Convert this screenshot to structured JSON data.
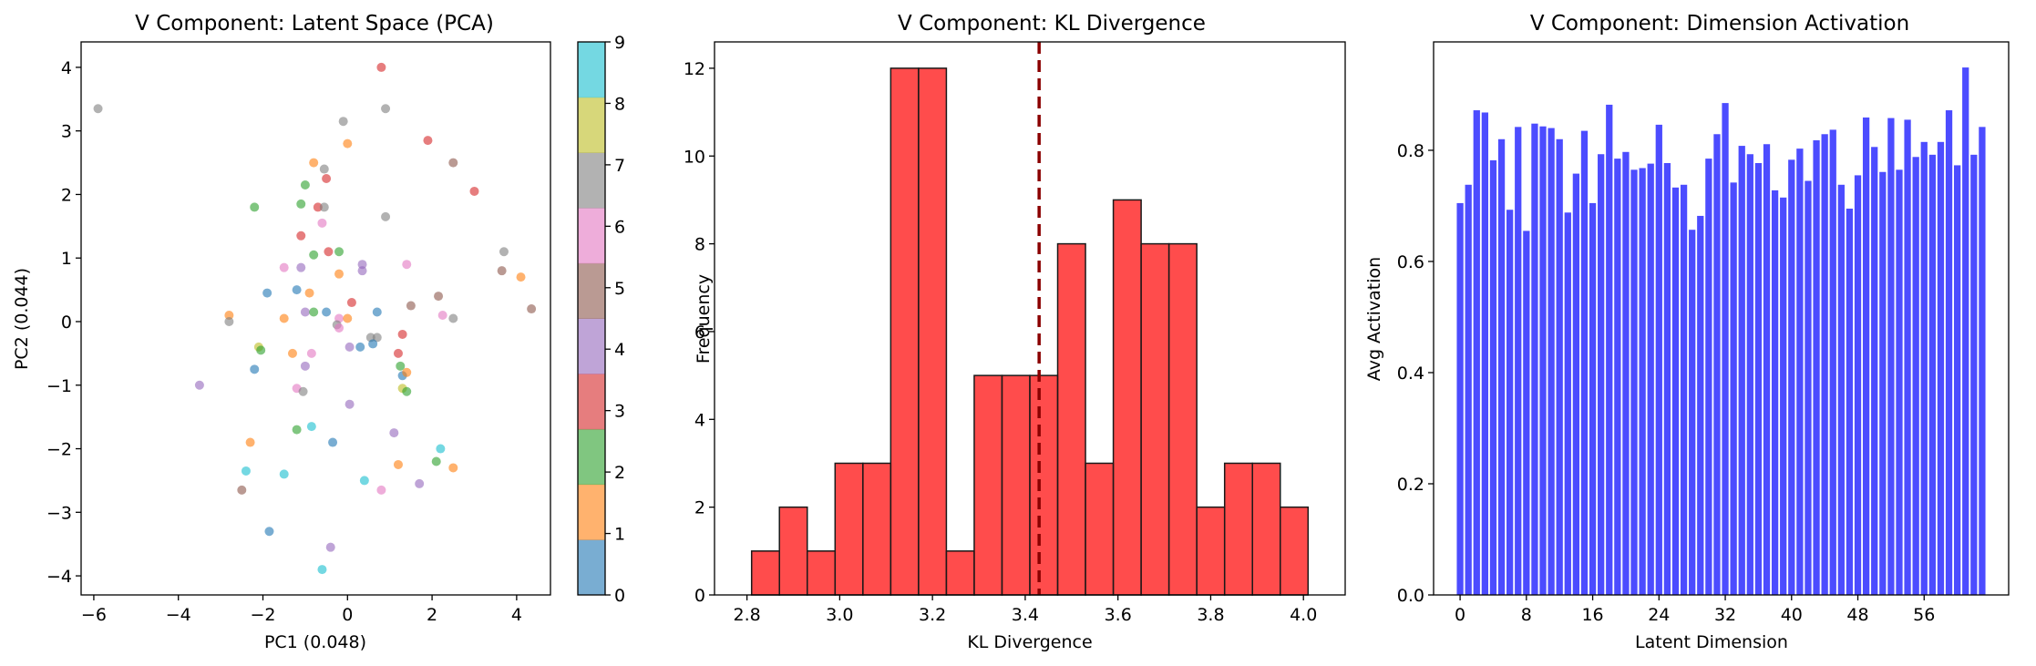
{
  "chart_data": [
    {
      "type": "scatter",
      "title": "V Component: Latent Space (PCA)",
      "xlabel": "PC1 (0.048)",
      "ylabel": "PC2 (0.044)",
      "xlim": [
        -6.3,
        4.8
      ],
      "ylim": [
        -4.3,
        4.4
      ],
      "xticks": [
        -6,
        -4,
        -2,
        0,
        2,
        4
      ],
      "yticks": [
        -4,
        -3,
        -2,
        -1,
        0,
        1,
        2,
        3,
        4
      ],
      "colorbar": {
        "ticks": [
          0,
          1,
          2,
          3,
          4,
          5,
          6,
          7,
          8,
          9
        ]
      },
      "class_colors": [
        "#1f77b4",
        "#ff7f0e",
        "#2ca02c",
        "#d62728",
        "#9467bd",
        "#8c564b",
        "#e377c2",
        "#7f7f7f",
        "#bcbd22",
        "#17becf"
      ],
      "points": [
        [
          -5.9,
          3.35,
          7
        ],
        [
          0.8,
          4.0,
          3
        ],
        [
          -0.1,
          3.15,
          7
        ],
        [
          0.9,
          3.35,
          7
        ],
        [
          0.0,
          2.8,
          1
        ],
        [
          1.9,
          2.85,
          3
        ],
        [
          -0.8,
          2.5,
          1
        ],
        [
          -0.55,
          2.4,
          7
        ],
        [
          2.5,
          2.5,
          5
        ],
        [
          -0.5,
          2.25,
          3
        ],
        [
          -1.0,
          2.15,
          2
        ],
        [
          3.0,
          2.05,
          3
        ],
        [
          -2.2,
          1.8,
          2
        ],
        [
          -1.1,
          1.85,
          2
        ],
        [
          -0.7,
          1.8,
          3
        ],
        [
          -0.55,
          1.8,
          7
        ],
        [
          0.9,
          1.65,
          7
        ],
        [
          -0.6,
          1.55,
          6
        ],
        [
          -1.1,
          1.35,
          3
        ],
        [
          -0.2,
          1.1,
          2
        ],
        [
          -0.8,
          1.05,
          2
        ],
        [
          -0.45,
          1.1,
          3
        ],
        [
          3.7,
          1.1,
          7
        ],
        [
          1.4,
          0.9,
          6
        ],
        [
          0.35,
          0.9,
          4
        ],
        [
          0.35,
          0.8,
          4
        ],
        [
          -1.5,
          0.85,
          6
        ],
        [
          -1.1,
          0.85,
          4
        ],
        [
          -0.2,
          0.75,
          1
        ],
        [
          3.65,
          0.8,
          5
        ],
        [
          4.1,
          0.7,
          1
        ],
        [
          -1.2,
          0.5,
          0
        ],
        [
          -1.9,
          0.45,
          0
        ],
        [
          -0.9,
          0.45,
          1
        ],
        [
          2.15,
          0.4,
          5
        ],
        [
          0.1,
          0.3,
          3
        ],
        [
          4.35,
          0.2,
          5
        ],
        [
          -1.0,
          0.15,
          4
        ],
        [
          -0.8,
          0.15,
          2
        ],
        [
          -0.5,
          0.15,
          0
        ],
        [
          1.5,
          0.25,
          5
        ],
        [
          2.25,
          0.1,
          6
        ],
        [
          0.7,
          0.15,
          0
        ],
        [
          -2.8,
          0.1,
          1
        ],
        [
          -1.5,
          0.05,
          1
        ],
        [
          -0.2,
          0.05,
          6
        ],
        [
          0.0,
          0.05,
          1
        ],
        [
          -0.25,
          -0.05,
          7
        ],
        [
          2.5,
          0.05,
          7
        ],
        [
          -2.8,
          0.0,
          7
        ],
        [
          -0.2,
          -0.1,
          6
        ],
        [
          1.3,
          -0.2,
          3
        ],
        [
          0.55,
          -0.25,
          7
        ],
        [
          0.7,
          -0.25,
          7
        ],
        [
          0.6,
          -0.35,
          0
        ],
        [
          -2.1,
          -0.4,
          8
        ],
        [
          -2.05,
          -0.45,
          2
        ],
        [
          0.3,
          -0.4,
          0
        ],
        [
          0.05,
          -0.4,
          4
        ],
        [
          -1.3,
          -0.5,
          1
        ],
        [
          -0.85,
          -0.5,
          6
        ],
        [
          1.2,
          -0.5,
          3
        ],
        [
          -2.2,
          -0.75,
          0
        ],
        [
          -1.0,
          -0.7,
          4
        ],
        [
          1.25,
          -0.7,
          2
        ],
        [
          1.3,
          -0.85,
          0
        ],
        [
          1.4,
          -0.8,
          1
        ],
        [
          -1.2,
          -1.05,
          6
        ],
        [
          -1.05,
          -1.1,
          7
        ],
        [
          1.3,
          -1.05,
          8
        ],
        [
          1.4,
          -1.1,
          2
        ],
        [
          -3.5,
          -1.0,
          4
        ],
        [
          0.05,
          -1.3,
          4
        ],
        [
          -1.2,
          -1.7,
          2
        ],
        [
          -0.85,
          -1.65,
          9
        ],
        [
          1.1,
          -1.75,
          4
        ],
        [
          -0.35,
          -1.9,
          0
        ],
        [
          2.2,
          -2.0,
          9
        ],
        [
          2.1,
          -2.2,
          2
        ],
        [
          -2.3,
          -1.9,
          1
        ],
        [
          1.2,
          -2.25,
          1
        ],
        [
          2.5,
          -2.3,
          1
        ],
        [
          -2.4,
          -2.35,
          9
        ],
        [
          -1.5,
          -2.4,
          9
        ],
        [
          0.4,
          -2.5,
          9
        ],
        [
          1.7,
          -2.55,
          4
        ],
        [
          -2.5,
          -2.65,
          5
        ],
        [
          0.8,
          -2.65,
          6
        ],
        [
          -1.85,
          -3.3,
          0
        ],
        [
          -0.4,
          -3.55,
          4
        ],
        [
          -0.6,
          -3.9,
          9
        ]
      ]
    },
    {
      "type": "bar",
      "title": "V Component: KL Divergence",
      "xlabel": "KL Divergence",
      "ylabel": "Frequency",
      "xlim": [
        2.73,
        4.09
      ],
      "ylim": [
        0,
        12.6
      ],
      "xticks": [
        2.8,
        3.0,
        3.2,
        3.4,
        3.6,
        3.8,
        4.0
      ],
      "yticks": [
        0,
        2,
        4,
        6,
        8,
        10,
        12
      ],
      "bin_edges": [
        2.81,
        2.87,
        2.93,
        2.99,
        3.05,
        3.11,
        3.17,
        3.23,
        3.29,
        3.35,
        3.41,
        3.47,
        3.53,
        3.59,
        3.65,
        3.71,
        3.77,
        3.83,
        3.89,
        3.95,
        4.01
      ],
      "counts": [
        1,
        2,
        1,
        3,
        3,
        12,
        12,
        1,
        5,
        5,
        5,
        8,
        3,
        9,
        8,
        8,
        2,
        3,
        3,
        2
      ],
      "mean_line": 3.43
    },
    {
      "type": "bar",
      "title": "V Component: Dimension Activation",
      "xlabel": "Latent Dimension",
      "ylabel": "Avg Activation",
      "xlim": [
        -3.2,
        66.2
      ],
      "ylim": [
        0,
        0.995
      ],
      "xticks": [
        0,
        8,
        16,
        24,
        32,
        40,
        48,
        56
      ],
      "yticks": [
        "0.0",
        "0.2",
        "0.4",
        "0.6",
        "0.8"
      ],
      "values": [
        0.705,
        0.738,
        0.872,
        0.868,
        0.782,
        0.82,
        0.693,
        0.842,
        0.655,
        0.848,
        0.843,
        0.84,
        0.82,
        0.688,
        0.758,
        0.835,
        0.705,
        0.793,
        0.882,
        0.785,
        0.797,
        0.765,
        0.768,
        0.776,
        0.846,
        0.777,
        0.733,
        0.738,
        0.657,
        0.682,
        0.785,
        0.829,
        0.885,
        0.742,
        0.808,
        0.793,
        0.777,
        0.811,
        0.728,
        0.715,
        0.783,
        0.803,
        0.745,
        0.818,
        0.829,
        0.837,
        0.738,
        0.695,
        0.755,
        0.859,
        0.806,
        0.761,
        0.858,
        0.765,
        0.855,
        0.788,
        0.815,
        0.792,
        0.815,
        0.872,
        0.773,
        0.949,
        0.792,
        0.842
      ]
    }
  ]
}
